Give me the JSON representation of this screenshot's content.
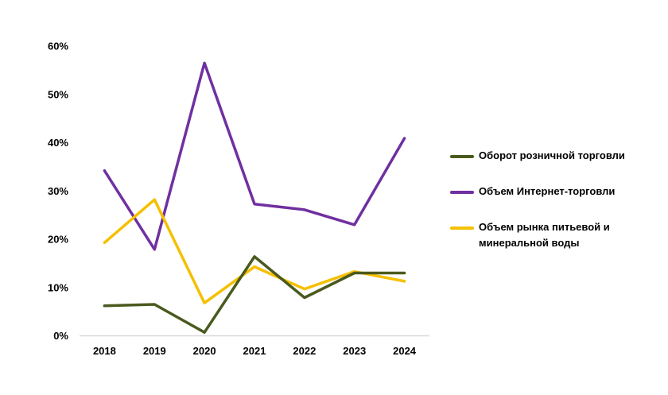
{
  "chart_data": {
    "type": "line",
    "categories": [
      "2018",
      "2019",
      "2020",
      "2021",
      "2022",
      "2023",
      "2024"
    ],
    "ylim": [
      0,
      60
    ],
    "yticks": [
      "0%",
      "10%",
      "20%",
      "30%",
      "40%",
      "50%",
      "60%"
    ],
    "grid": false,
    "legend_position": "right",
    "series": [
      {
        "name": "Оборот розничной торговли",
        "color": "#4a5a1e",
        "values": [
          6.2,
          6.5,
          0.7,
          16.4,
          7.9,
          13.0,
          13.0
        ]
      },
      {
        "name": "Объем Интернет-торговли",
        "color": "#7030a0",
        "values": [
          34.2,
          17.9,
          56.5,
          27.3,
          26.1,
          23.0,
          40.9
        ]
      },
      {
        "name": "Объем рынка питьевой и минеральной воды",
        "color": "#f5c000",
        "values": [
          19.3,
          28.2,
          6.8,
          14.3,
          9.7,
          13.3,
          11.3
        ]
      }
    ]
  }
}
